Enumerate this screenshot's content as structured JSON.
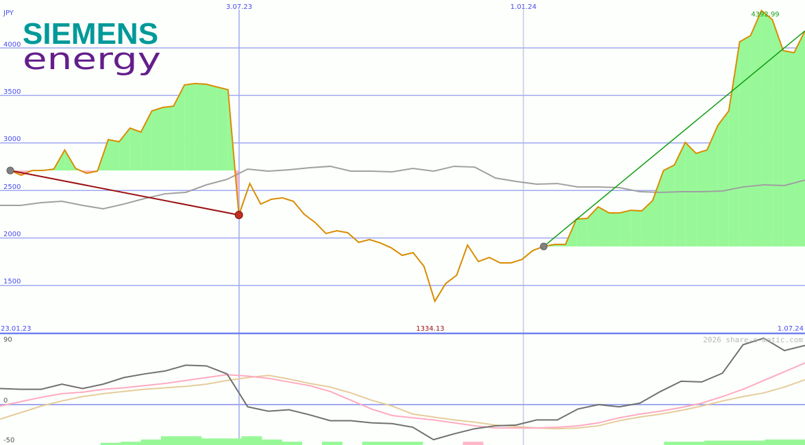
{
  "logo": {
    "line1": "SIEMENS",
    "line2": "energy",
    "color1": "#009999",
    "color2": "#641e8c"
  },
  "chart_data": [
    {
      "type": "line",
      "currency_label": "JPY",
      "x_tick_labels_top": [
        "3.07.23",
        "1.01.24"
      ],
      "x_tick_labels_bottom": [
        "23.01.23",
        "1.07.24"
      ],
      "y_ticks": [
        4000,
        3500,
        3000,
        2500,
        2000,
        1500
      ],
      "ylim": [
        1100,
        4500
      ],
      "grid": true,
      "max_label": "4392.99",
      "min_label": "1334.13",
      "colors": {
        "price": "#d98c00",
        "gain_fill": "#98f898",
        "loss_fill": "#ffb6c8",
        "compare": "#a0a0a0",
        "down_trend": "#9b1010",
        "up_trend": "#109b10",
        "grid": "#a0a8f0"
      },
      "series": [
        {
          "key": "price",
          "values": [
            2710,
            2660,
            2710,
            2710,
            2725,
            2926,
            2732,
            2681,
            2703,
            3035,
            3013,
            3157,
            3114,
            3337,
            3373,
            3388,
            3611,
            3625,
            3618,
            3589,
            3560,
            2242,
            2573,
            2357,
            2408,
            2422,
            2386,
            2249,
            2163,
            2047,
            2076,
            2055,
            1954,
            1983,
            1947,
            1896,
            1817,
            1846,
            1702,
            1334,
            1521,
            1608,
            1925,
            1752,
            1795,
            1738,
            1738,
            1774,
            1868,
            1911,
            1932,
            1932,
            2199,
            2206,
            2328,
            2264,
            2264,
            2292,
            2285,
            2393,
            2710,
            2768,
            3006,
            2890,
            2926,
            3186,
            3337,
            4065,
            4130,
            4393,
            4298,
            3971,
            3950,
            4180
          ]
        },
        {
          "key": "compare",
          "values": [
            2343,
            2343,
            2372,
            2386,
            2343,
            2307,
            2357,
            2415,
            2465,
            2480,
            2559,
            2617,
            2725,
            2703,
            2718,
            2739,
            2754,
            2703,
            2703,
            2696,
            2732,
            2703,
            2754,
            2746,
            2631,
            2595,
            2566,
            2573,
            2537,
            2537,
            2530,
            2487,
            2480,
            2487,
            2487,
            2494,
            2537,
            2559,
            2552,
            2609
          ]
        }
      ],
      "trend_segments": [
        {
          "from_index": 0,
          "to_index": 21,
          "base": 2710,
          "trend": "down"
        },
        {
          "from_index": 49,
          "to_index": 73,
          "base": 1911,
          "trend": "up"
        }
      ]
    },
    {
      "type": "line",
      "y_ticks": [
        90,
        0,
        -50
      ],
      "ylim": [
        -55,
        100
      ],
      "watermark": "2026 share-o-matic.com",
      "colors": {
        "momentum": "#707070",
        "avg1": "#ffaac0",
        "avg2": "#e6cc9a",
        "hist_pos": "#98f898",
        "hist_neg": "#ffb6c8"
      },
      "series": [
        {
          "key": "momentum",
          "values": [
            22,
            21,
            21,
            28,
            22,
            28,
            37,
            42,
            46,
            54,
            53,
            42,
            -3,
            -9,
            -7,
            -14,
            -22,
            -22,
            -25,
            -26,
            -31,
            -48,
            -40,
            -33,
            -29,
            -28,
            -21,
            -21,
            -6,
            0,
            -3,
            2,
            18,
            32,
            31,
            43,
            82,
            91,
            74,
            81
          ]
        },
        {
          "key": "avg1",
          "values": [
            -2,
            4,
            10,
            15,
            17,
            21,
            23,
            26,
            29,
            33,
            37,
            41,
            39,
            36,
            31,
            26,
            18,
            6,
            -6,
            -15,
            -18,
            -21,
            -25,
            -29,
            -32,
            -32,
            -32,
            -31,
            -29,
            -25,
            -18,
            -13,
            -9,
            -4,
            2,
            11,
            21,
            33,
            45,
            57
          ]
        },
        {
          "key": "avg2",
          "values": [
            -20,
            -11,
            -2,
            5,
            11,
            15,
            18,
            21,
            23,
            25,
            28,
            33,
            37,
            40,
            35,
            29,
            24,
            16,
            6,
            -2,
            -13,
            -17,
            -21,
            -24,
            -28,
            -30,
            -32,
            -33,
            -32,
            -29,
            -22,
            -17,
            -13,
            -8,
            -2,
            5,
            11,
            16,
            24,
            34
          ]
        },
        {
          "key": "histogram",
          "values": [
            0,
            0,
            0,
            0,
            0,
            2,
            3,
            5,
            8,
            8,
            6,
            6,
            8,
            5,
            3,
            0,
            3,
            0,
            3,
            3,
            3,
            0,
            0,
            -3,
            0,
            0,
            0,
            0,
            0,
            0,
            0,
            0,
            0,
            3,
            3,
            4,
            4,
            4,
            5,
            5
          ]
        }
      ]
    }
  ]
}
